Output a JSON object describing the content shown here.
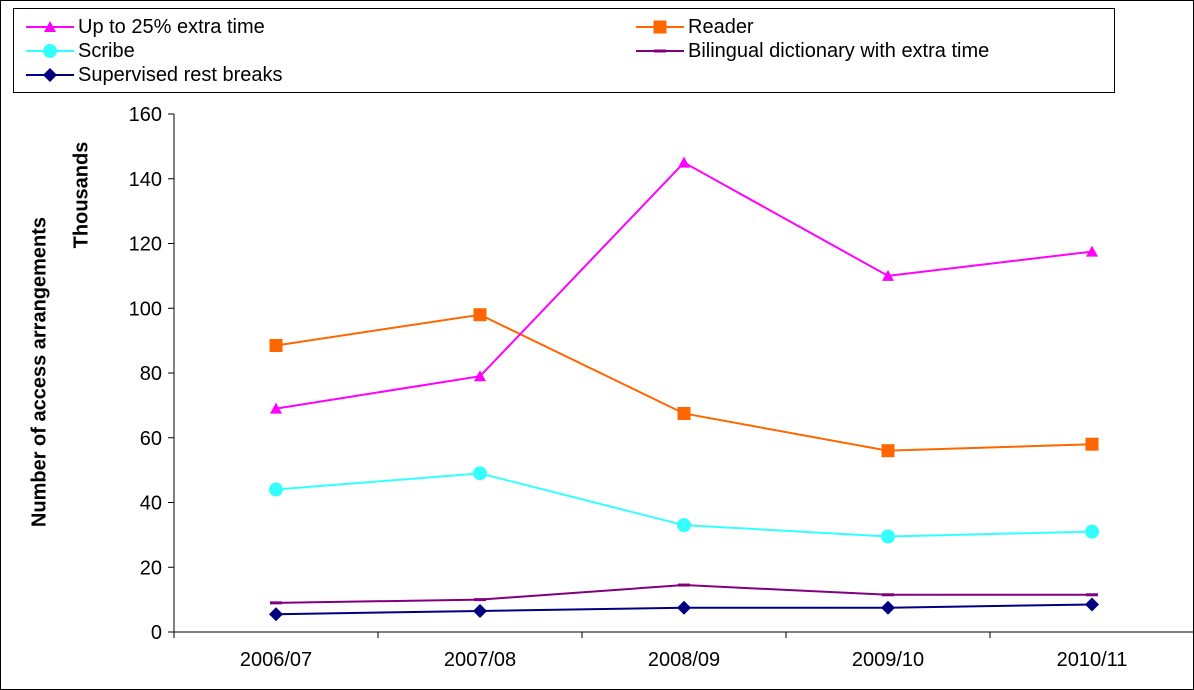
{
  "chart_data": {
    "type": "line",
    "title": "",
    "xlabel": "",
    "ylabel": "Number of access arrangements",
    "y_unit_label": "Thousands",
    "ylim": [
      0,
      160
    ],
    "yticks": [
      0,
      20,
      40,
      60,
      80,
      100,
      120,
      140,
      160
    ],
    "grid": false,
    "legend_position": "top",
    "categories": [
      "2006/07",
      "2007/08",
      "2008/09",
      "2009/10",
      "2010/11"
    ],
    "series": [
      {
        "name": "Up to 25% extra time",
        "color": "#FF00FF",
        "marker": "triangle",
        "values": [
          69,
          79,
          145,
          110,
          117.5
        ]
      },
      {
        "name": "Reader",
        "color": "#FF6600",
        "marker": "square",
        "values": [
          88.5,
          98,
          67.5,
          56,
          58
        ]
      },
      {
        "name": "Scribe",
        "color": "#33FFFF",
        "marker": "circle",
        "values": [
          44,
          49,
          33,
          29.5,
          31
        ]
      },
      {
        "name": "Bilingual dictionary with extra time",
        "color": "#800080",
        "marker": "dash",
        "values": [
          9,
          10,
          14.5,
          11.5,
          11.5
        ]
      },
      {
        "name": "Supervised rest breaks",
        "color": "#000080",
        "marker": "diamond",
        "values": [
          5.5,
          6.5,
          7.5,
          7.5,
          8.5
        ]
      }
    ]
  }
}
